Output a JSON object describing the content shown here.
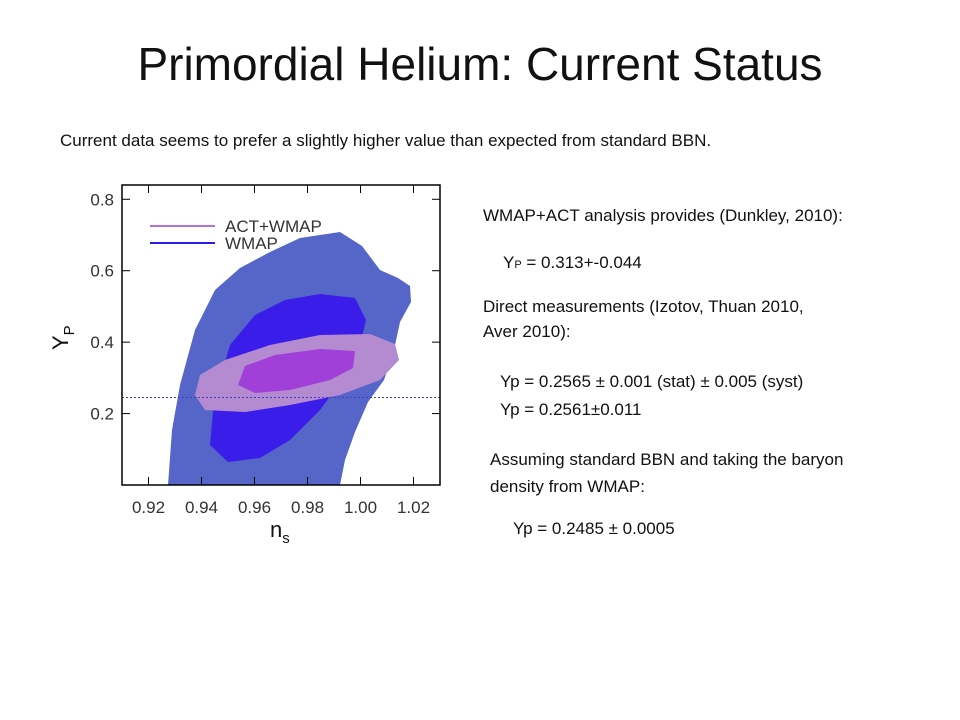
{
  "slide": {
    "title": "Primordial Helium: Current Status",
    "subtitle": "Current data seems to prefer a slightly higher value than expected from standard BBN.",
    "wmap_act_intro": "WMAP+ACT analysis provides (Dunkley, 2010):",
    "wmap_act_result": {
      "main": "Y",
      "sub": "P",
      "rest": " = 0.313+-0.044"
    },
    "direct_intro": [
      "Direct measurements (Izotov, Thuan 2010,",
      "Aver 2010):"
    ],
    "direct_results": [
      "Yp = 0.2565 ± 0.001 (stat) ± 0.005 (syst)",
      "Yp = 0.2561±0.011"
    ],
    "bbn_intro": [
      "Assuming standard BBN and taking the baryon",
      "density from WMAP:"
    ],
    "bbn_result": "Yp = 0.2485 ± 0.0005"
  },
  "chart_data": {
    "type": "contour",
    "xlim": [
      0.91,
      1.03
    ],
    "ylim": [
      0,
      0.84
    ],
    "xticks": [
      0.92,
      0.94,
      0.96,
      0.98,
      {
        "value": 1,
        "label": "1.00"
      },
      1.02
    ],
    "yticks": [
      0.2,
      0.4,
      0.6,
      0.8
    ],
    "x_label": {
      "main": "n",
      "sub": "s"
    },
    "y_label": {
      "main": "Y",
      "sub": "P"
    },
    "series": [
      {
        "name": "ACT+WMAP",
        "color": "#b070e0"
      },
      {
        "name": "WMAP",
        "color": "#2a1ee6"
      }
    ],
    "reference_line": 0.245
  }
}
